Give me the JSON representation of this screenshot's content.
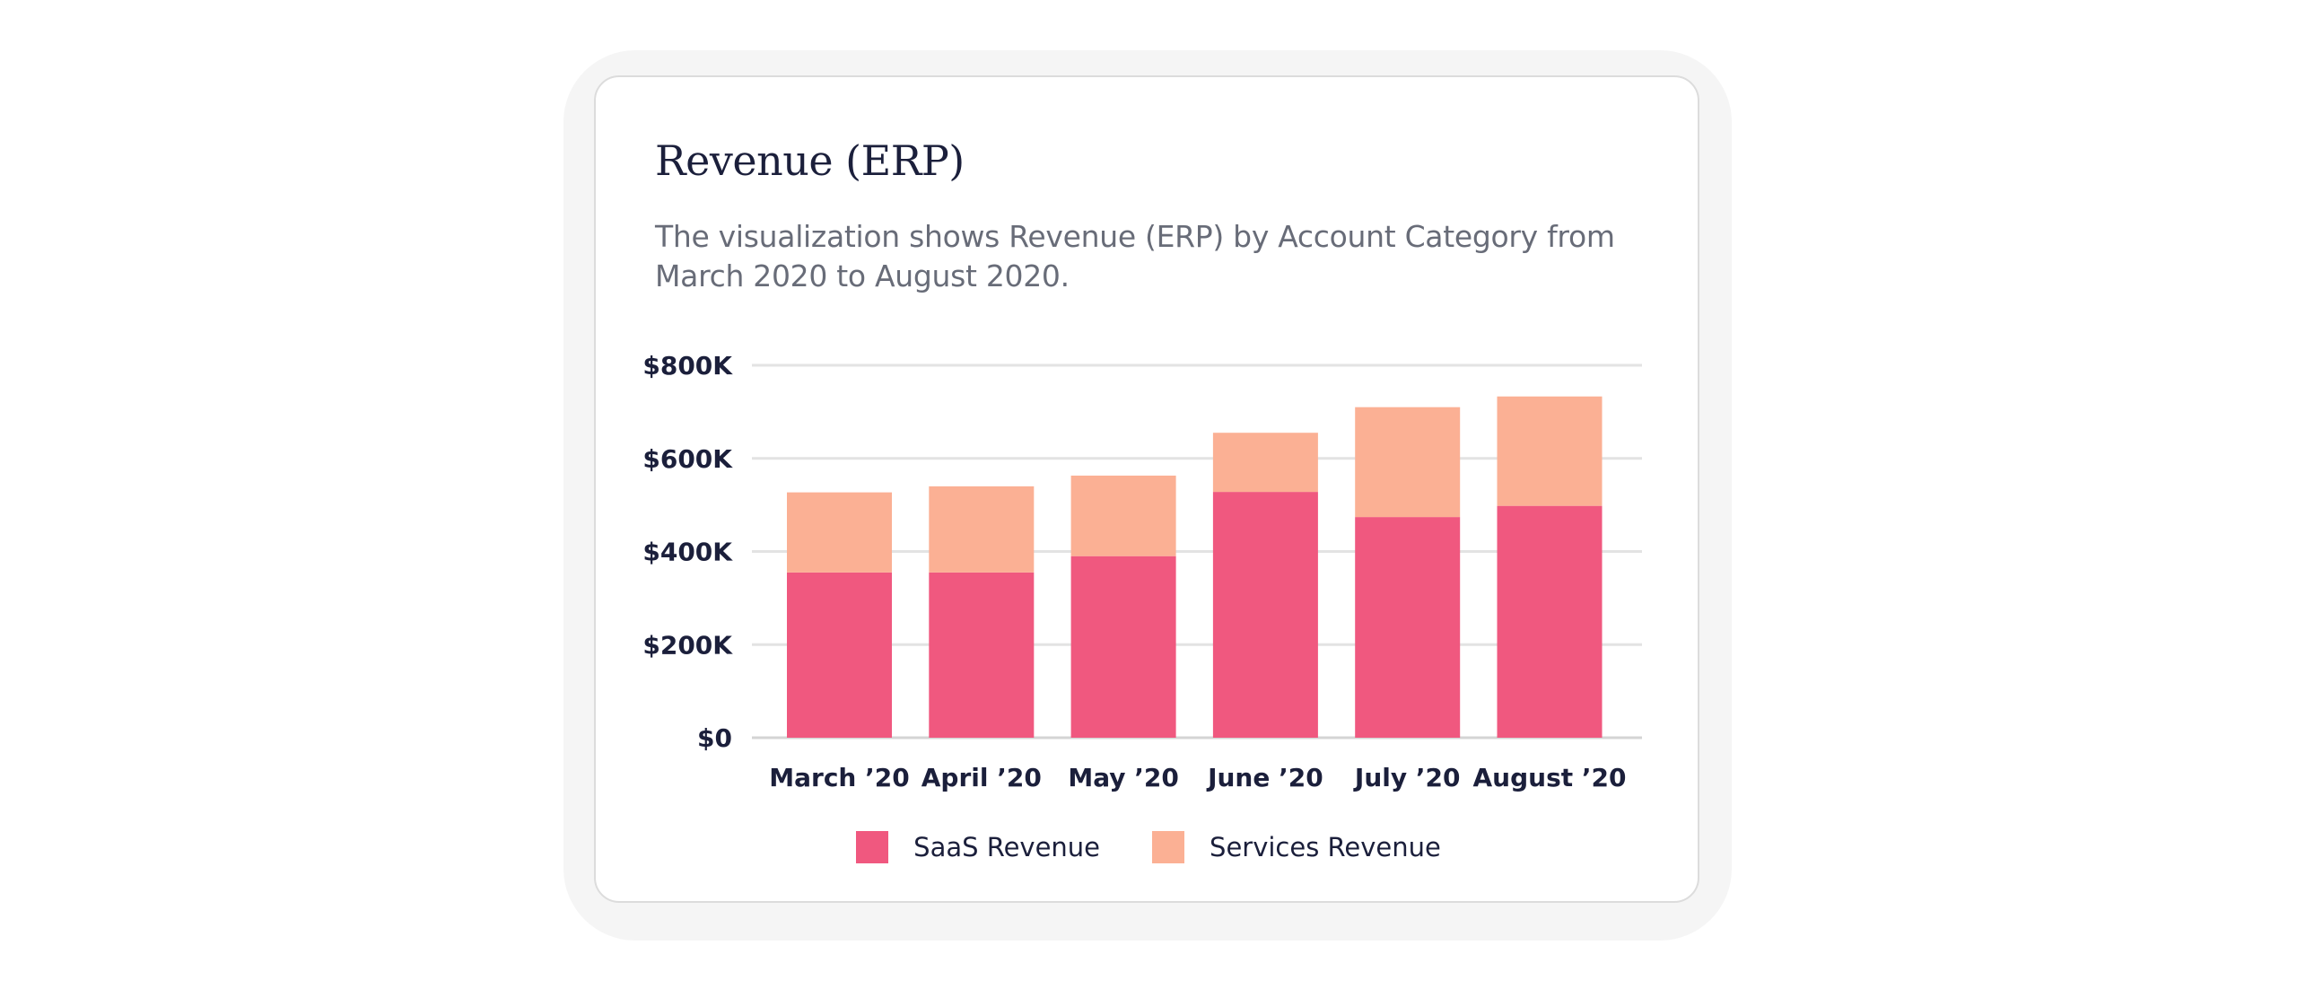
{
  "card": {
    "title": "Revenue (ERP)",
    "subtitle": "The visualization shows Revenue (ERP) by Account Category from March 2020 to August 2020."
  },
  "chart_data": {
    "type": "bar",
    "stacked": true,
    "title": "Revenue (ERP)",
    "categories": [
      "March ’20",
      "April ’20",
      "May ’20",
      "June ’20",
      "July ’20",
      "August ’20"
    ],
    "series": [
      {
        "name": "SaaS Revenue",
        "color": "#f0587f",
        "values": [
          355000,
          355000,
          390000,
          528000,
          474000,
          498000
        ]
      },
      {
        "name": "Services Revenue",
        "color": "#fbb094",
        "values": [
          172000,
          185000,
          173000,
          127000,
          236000,
          235000
        ]
      }
    ],
    "ylim": [
      0,
      800000
    ],
    "yticks": [
      0,
      200000,
      400000,
      600000,
      800000
    ],
    "ytick_labels": [
      "$0",
      "$200K",
      "$400K",
      "$600K",
      "$800K"
    ],
    "grid": true,
    "legend_position": "bottom"
  },
  "legend": {
    "items": [
      {
        "label": "SaaS Revenue",
        "color": "#f0587f"
      },
      {
        "label": "Services Revenue",
        "color": "#fbb094"
      }
    ]
  }
}
